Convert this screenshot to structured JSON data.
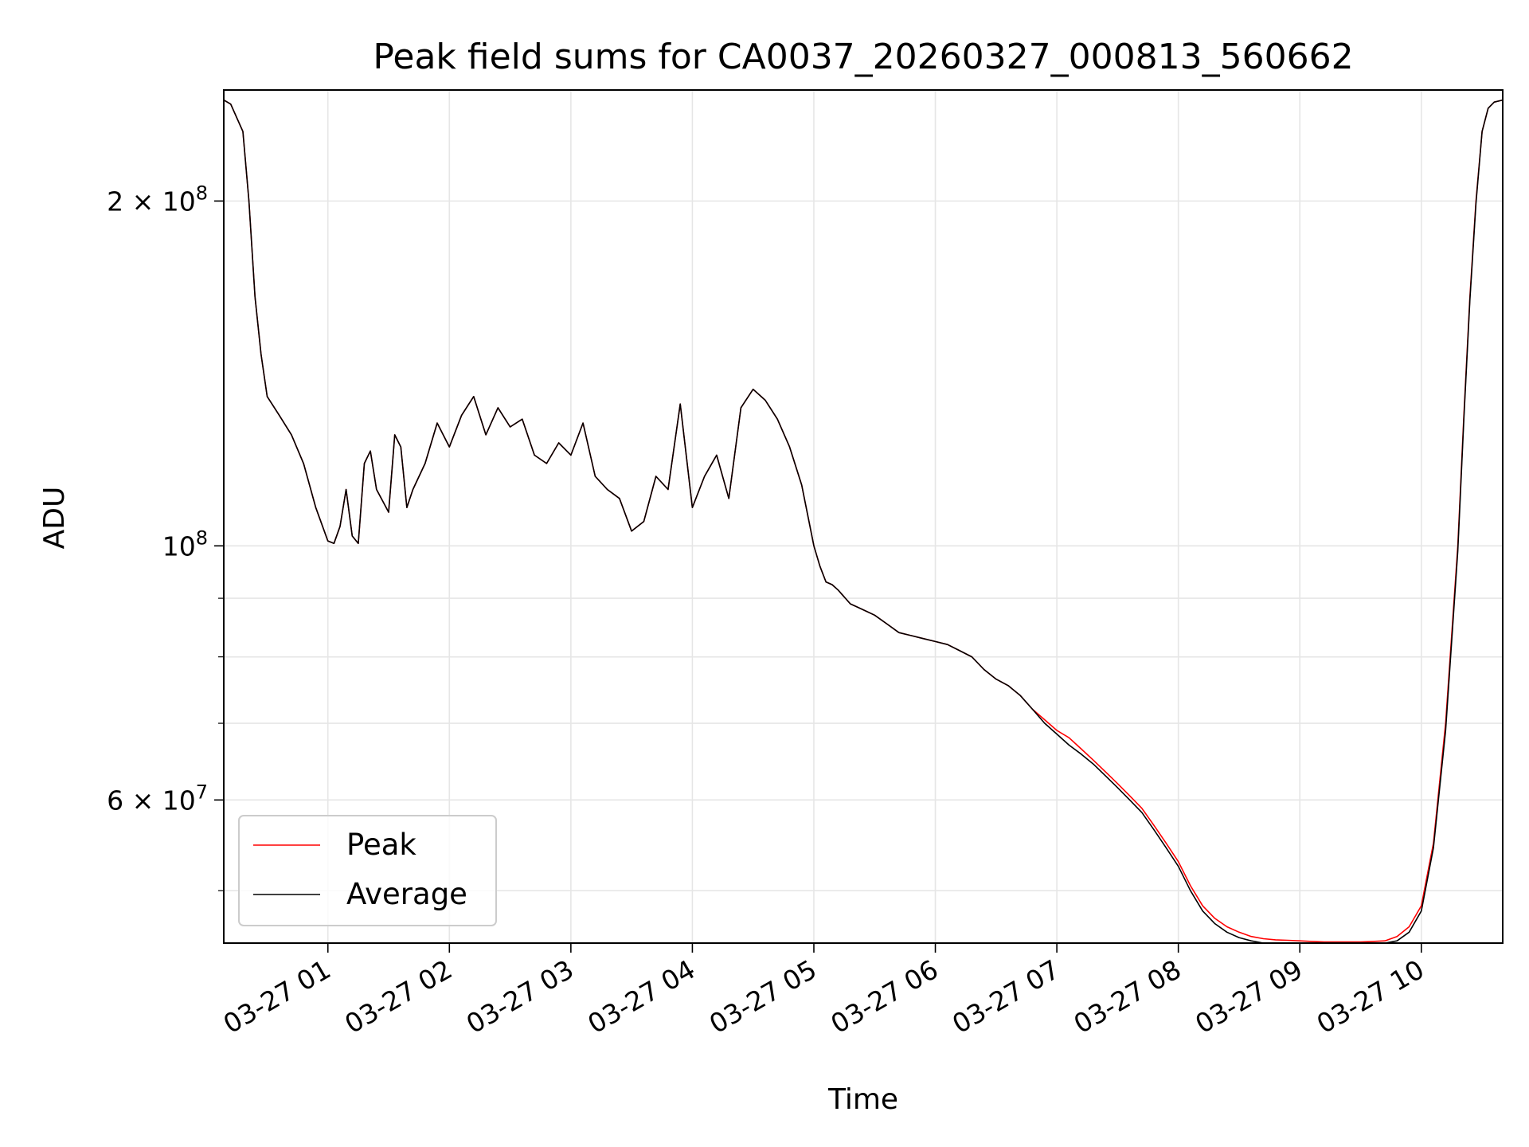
{
  "chart_data": {
    "type": "line",
    "title": "Peak field sums for CA0037_20260327_000813_560662",
    "xlabel": "Time",
    "ylabel": "ADU",
    "yscale": "log",
    "x_unit": "hours since 03-27 00:00",
    "xlim": [
      0.143,
      10.67
    ],
    "ylim": [
      45000000,
      250000000
    ],
    "grid": true,
    "legend_position": "lower-left",
    "x_ticks": [
      {
        "value": 1,
        "label": "03-27 01"
      },
      {
        "value": 2,
        "label": "03-27 02"
      },
      {
        "value": 3,
        "label": "03-27 03"
      },
      {
        "value": 4,
        "label": "03-27 04"
      },
      {
        "value": 5,
        "label": "03-27 05"
      },
      {
        "value": 6,
        "label": "03-27 06"
      },
      {
        "value": 7,
        "label": "03-27 07"
      },
      {
        "value": 8,
        "label": "03-27 08"
      },
      {
        "value": 9,
        "label": "03-27 09"
      },
      {
        "value": 10,
        "label": "03-27 10"
      }
    ],
    "y_major_ticks": [
      {
        "value": 60000000,
        "mantissa": "6",
        "exponent": "7"
      },
      {
        "value": 100000000,
        "mantissa": "",
        "exponent": "8"
      },
      {
        "value": 200000000,
        "mantissa": "2",
        "exponent": "8"
      }
    ],
    "y_minor_ticks": [
      50000000,
      70000000,
      80000000,
      90000000
    ],
    "series": [
      {
        "name": "Peak",
        "color": "#ff0000",
        "x": [
          0.143,
          0.2,
          0.3,
          0.35,
          0.4,
          0.45,
          0.5,
          0.6,
          0.7,
          0.8,
          0.9,
          1.0,
          1.05,
          1.1,
          1.15,
          1.2,
          1.25,
          1.3,
          1.35,
          1.4,
          1.5,
          1.55,
          1.6,
          1.65,
          1.7,
          1.8,
          1.9,
          2.0,
          2.1,
          2.2,
          2.3,
          2.4,
          2.5,
          2.6,
          2.7,
          2.8,
          2.9,
          3.0,
          3.1,
          3.2,
          3.3,
          3.4,
          3.5,
          3.6,
          3.7,
          3.8,
          3.9,
          4.0,
          4.1,
          4.2,
          4.3,
          4.4,
          4.5,
          4.6,
          4.7,
          4.8,
          4.9,
          5.0,
          5.05,
          5.1,
          5.15,
          5.2,
          5.3,
          5.4,
          5.5,
          5.6,
          5.7,
          5.8,
          5.9,
          6.0,
          6.1,
          6.2,
          6.3,
          6.4,
          6.5,
          6.6,
          6.7,
          6.8,
          6.9,
          7.0,
          7.1,
          7.2,
          7.3,
          7.4,
          7.5,
          7.6,
          7.7,
          7.8,
          7.9,
          8.0,
          8.1,
          8.2,
          8.3,
          8.4,
          8.5,
          8.6,
          8.7,
          8.8,
          8.9,
          9.0,
          9.1,
          9.2,
          9.3,
          9.4,
          9.5,
          9.6,
          9.7,
          9.8,
          9.9,
          10.0,
          10.1,
          10.2,
          10.3,
          10.35,
          10.4,
          10.45,
          10.5,
          10.55,
          10.6,
          10.67
        ],
        "values": [
          245000000,
          243000000,
          230000000,
          200000000,
          165000000,
          147000000,
          135000000,
          130000000,
          125000000,
          118000000,
          108000000,
          101000000,
          100500000,
          104000000,
          112000000,
          102000000,
          100500000,
          118000000,
          121000000,
          112000000,
          107000000,
          125000000,
          122000000,
          108000000,
          112000000,
          118000000,
          128000000,
          122000000,
          130000000,
          135000000,
          125000000,
          132000000,
          127000000,
          129000000,
          120000000,
          118000000,
          123000000,
          120000000,
          128000000,
          115000000,
          112000000,
          110000000,
          103000000,
          105000000,
          115000000,
          112000000,
          133000000,
          108000000,
          115000000,
          120000000,
          110000000,
          132000000,
          137000000,
          134000000,
          129000000,
          122000000,
          113000000,
          100000000,
          96000000,
          93000000,
          92500000,
          91500000,
          89000000,
          88000000,
          87000000,
          85500000,
          84000000,
          83500000,
          83000000,
          82500000,
          82000000,
          81000000,
          80000000,
          78000000,
          76500000,
          75500000,
          74000000,
          72000000,
          70500000,
          69000000,
          68000000,
          66500000,
          65000000,
          63500000,
          62000000,
          60500000,
          59000000,
          57000000,
          55000000,
          53000000,
          50500000,
          48500000,
          47300000,
          46500000,
          46000000,
          45600000,
          45400000,
          45300000,
          45250000,
          45200000,
          45150000,
          45100000,
          45100000,
          45100000,
          45100000,
          45150000,
          45200000,
          45600000,
          46500000,
          48500000,
          55000000,
          70000000,
          100000000,
          130000000,
          165000000,
          200000000,
          230000000,
          241000000,
          244000000,
          245000000
        ]
      },
      {
        "name": "Average",
        "color": "#000000",
        "x": [
          0.143,
          0.2,
          0.3,
          0.35,
          0.4,
          0.45,
          0.5,
          0.6,
          0.7,
          0.8,
          0.9,
          1.0,
          1.05,
          1.1,
          1.15,
          1.2,
          1.25,
          1.3,
          1.35,
          1.4,
          1.5,
          1.55,
          1.6,
          1.65,
          1.7,
          1.8,
          1.9,
          2.0,
          2.1,
          2.2,
          2.3,
          2.4,
          2.5,
          2.6,
          2.7,
          2.8,
          2.9,
          3.0,
          3.1,
          3.2,
          3.3,
          3.4,
          3.5,
          3.6,
          3.7,
          3.8,
          3.9,
          4.0,
          4.1,
          4.2,
          4.3,
          4.4,
          4.5,
          4.6,
          4.7,
          4.8,
          4.9,
          5.0,
          5.05,
          5.1,
          5.15,
          5.2,
          5.3,
          5.4,
          5.5,
          5.6,
          5.7,
          5.8,
          5.9,
          6.0,
          6.1,
          6.2,
          6.3,
          6.4,
          6.5,
          6.6,
          6.7,
          6.8,
          6.9,
          7.0,
          7.1,
          7.2,
          7.3,
          7.4,
          7.5,
          7.6,
          7.7,
          7.8,
          7.9,
          8.0,
          8.1,
          8.2,
          8.3,
          8.4,
          8.5,
          8.6,
          8.7,
          8.8,
          8.9,
          9.0,
          9.1,
          9.2,
          9.3,
          9.4,
          9.5,
          9.6,
          9.7,
          9.8,
          9.9,
          10.0,
          10.1,
          10.2,
          10.3,
          10.35,
          10.4,
          10.45,
          10.5,
          10.55,
          10.6,
          10.67
        ],
        "values": [
          245000000,
          243000000,
          230000000,
          200000000,
          165000000,
          147000000,
          135000000,
          130000000,
          125000000,
          118000000,
          108000000,
          101000000,
          100500000,
          104000000,
          112000000,
          102000000,
          100500000,
          118000000,
          121000000,
          112000000,
          107000000,
          125000000,
          122000000,
          108000000,
          112000000,
          118000000,
          128000000,
          122000000,
          130000000,
          135000000,
          125000000,
          132000000,
          127000000,
          129000000,
          120000000,
          118000000,
          123000000,
          120000000,
          128000000,
          115000000,
          112000000,
          110000000,
          103000000,
          105000000,
          115000000,
          112000000,
          133000000,
          108000000,
          115000000,
          120000000,
          110000000,
          132000000,
          137000000,
          134000000,
          129000000,
          122000000,
          113000000,
          100000000,
          96000000,
          93000000,
          92500000,
          91500000,
          89000000,
          88000000,
          87000000,
          85500000,
          84000000,
          83500000,
          83000000,
          82500000,
          82000000,
          81000000,
          80000000,
          78000000,
          76500000,
          75500000,
          74000000,
          72000000,
          70000000,
          68500000,
          67000000,
          65800000,
          64500000,
          63000000,
          61500000,
          60000000,
          58500000,
          56500000,
          54500000,
          52500000,
          50000000,
          48000000,
          46800000,
          46000000,
          45500000,
          45200000,
          45000000,
          44900000,
          44850000,
          44800000,
          44800000,
          44800000,
          44800000,
          44800000,
          44800000,
          44850000,
          44900000,
          45200000,
          46000000,
          48000000,
          54500000,
          69000000,
          99000000,
          129000000,
          164000000,
          199000000,
          230000000,
          241000000,
          244000000,
          245000000
        ]
      }
    ]
  }
}
